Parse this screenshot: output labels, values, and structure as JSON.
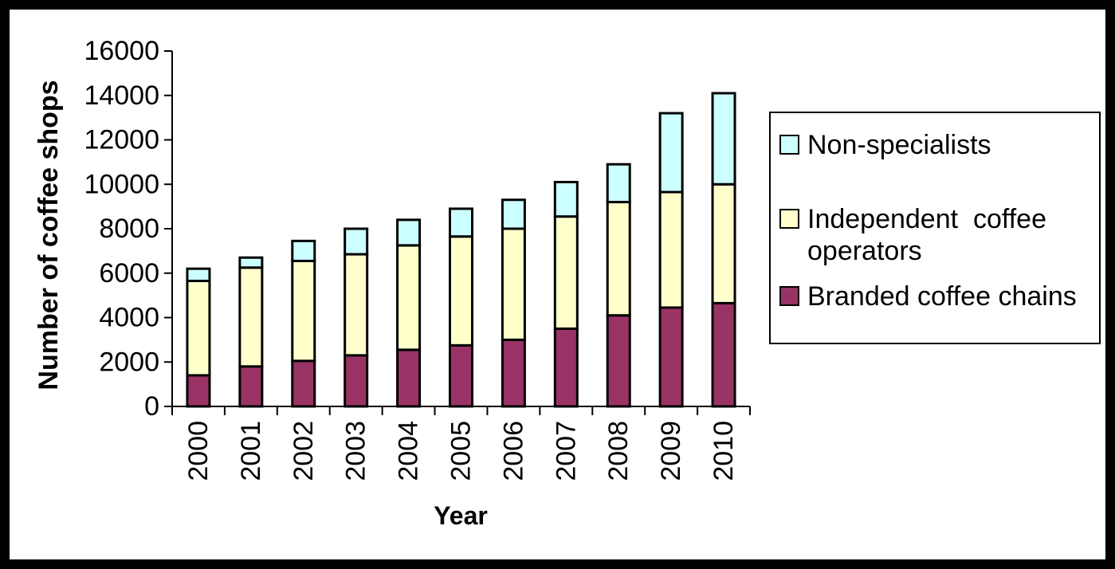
{
  "chart_data": {
    "type": "bar",
    "stacked": true,
    "title": "",
    "xlabel": "Year",
    "ylabel": "Number of coffee shops",
    "categories": [
      "2000",
      "2001",
      "2002",
      "2003",
      "2004",
      "2005",
      "2006",
      "2007",
      "2008",
      "2009",
      "2010"
    ],
    "series": [
      {
        "name": "Branded coffee chains",
        "color": "#993366",
        "values": [
          1400,
          1800,
          2050,
          2300,
          2550,
          2750,
          3000,
          3500,
          4100,
          4450,
          4650
        ]
      },
      {
        "name": "Independent coffee operators",
        "color": "#FFFFCC",
        "values": [
          4250,
          4450,
          4500,
          4550,
          4700,
          4900,
          5000,
          5050,
          5100,
          5200,
          5350
        ]
      },
      {
        "name": "Non-specialists",
        "color": "#CCFFFF",
        "values": [
          550,
          450,
          900,
          1150,
          1150,
          1250,
          1300,
          1550,
          1700,
          3550,
          4100
        ]
      }
    ],
    "totals": [
      6200,
      6700,
      7450,
      8000,
      8400,
      8900,
      9300,
      10100,
      10900,
      13200,
      14100
    ],
    "ylim": [
      0,
      16000
    ],
    "yticks": [
      0,
      2000,
      4000,
      6000,
      8000,
      10000,
      12000,
      14000,
      16000
    ],
    "grid": false,
    "legend_position": "right",
    "bar_outline_color": "#000000",
    "axis_color": "#000000"
  },
  "legend": {
    "items": [
      {
        "label": "Non-specialists",
        "color": "#CCFFFF"
      },
      {
        "label": "Independent  coffee operators",
        "color": "#FFFFCC"
      },
      {
        "label": "Branded coffee chains",
        "color": "#993366"
      }
    ]
  }
}
